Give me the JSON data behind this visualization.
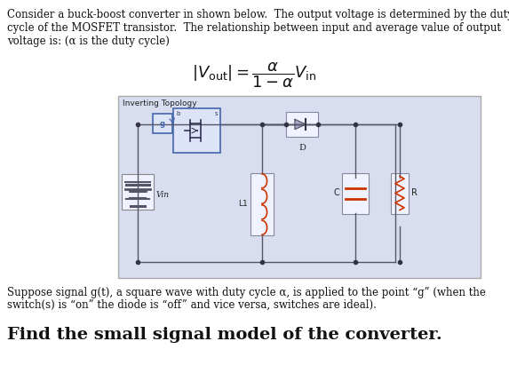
{
  "background_color": "#ffffff",
  "fig_width": 5.73,
  "fig_height": 4.38,
  "dpi": 100,
  "top_text_line1": "Consider a buck-boost converter in shown below.  The output voltage is determined by the duty",
  "top_text_line2": "cycle of the MOSFET transistor.  The relationship between input and average value of output",
  "top_text_line3": "voltage is: (α is the duty cycle)",
  "circuit_label": "Inverting Topology",
  "circuit_bg": "#d8ddef",
  "circuit_border": "#aaaaaa",
  "bottom_text_line1": "Suppose signal g(t), a square wave with duty cycle α, is applied to the point “g” (when the",
  "bottom_text_line2": "switch(s) is “on” the diode is “off” and vice versa, switches are ideal).",
  "bottom_bold_text": "Find the small signal model of the converter.",
  "font_size_body": 8.5,
  "font_size_bold": 14.0,
  "wire_color": "#555566",
  "component_bg": "#f0f2ff",
  "mosfet_border": "#4466aa",
  "mosfet_fill": "#dde4f8",
  "signal_box_color": "#4466aa",
  "signal_box_fill": "#dde4f8",
  "diode_fill": "#aaaacc",
  "cap_color": "#cc3300",
  "res_color": "#cc3300",
  "ind_color": "#cc3300",
  "vin_color": "#333344",
  "dot_color": "#333344"
}
